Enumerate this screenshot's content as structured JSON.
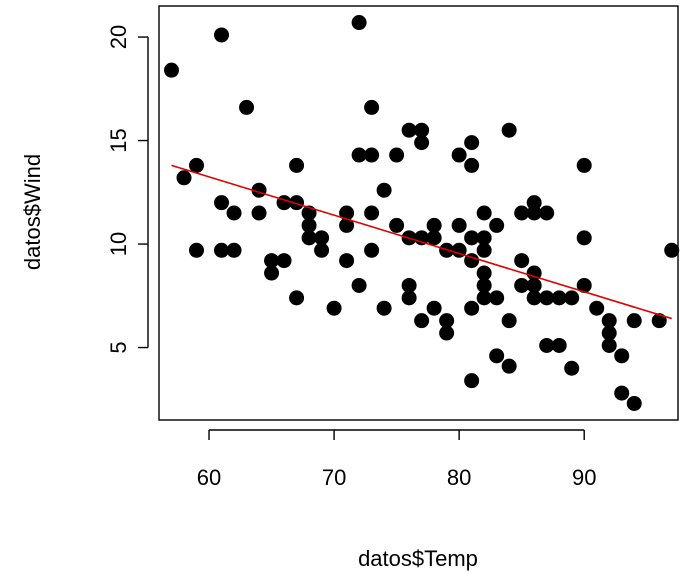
{
  "chart_data": {
    "type": "scatter",
    "title": "",
    "xlabel": "datos$Temp",
    "ylabel": "datos$Wind",
    "xlim": [
      56,
      97.5
    ],
    "ylim": [
      1.5,
      21.5
    ],
    "xticks": [
      60,
      70,
      80,
      90
    ],
    "yticks": [
      5,
      10,
      15,
      20
    ],
    "grid": false,
    "point_color": "#000000",
    "fit_line_color": "#e00000",
    "fit_line": {
      "x": [
        57,
        97
      ],
      "y": [
        13.8,
        6.4
      ]
    },
    "points": [
      [
        57,
        18.4
      ],
      [
        58,
        13.2
      ],
      [
        59,
        13.8
      ],
      [
        59,
        9.7
      ],
      [
        61,
        20.1
      ],
      [
        61,
        12.0
      ],
      [
        61,
        9.7
      ],
      [
        62,
        11.5
      ],
      [
        62,
        9.7
      ],
      [
        63,
        16.6
      ],
      [
        64,
        12.6
      ],
      [
        64,
        11.5
      ],
      [
        65,
        9.2
      ],
      [
        65,
        8.6
      ],
      [
        66,
        12.0
      ],
      [
        66,
        9.2
      ],
      [
        67,
        13.8
      ],
      [
        67,
        12.0
      ],
      [
        67,
        7.4
      ],
      [
        68,
        11.5
      ],
      [
        68,
        10.9
      ],
      [
        68,
        10.3
      ],
      [
        69,
        10.3
      ],
      [
        69,
        9.7
      ],
      [
        70,
        6.9
      ],
      [
        71,
        11.5
      ],
      [
        71,
        10.9
      ],
      [
        71,
        9.2
      ],
      [
        72,
        20.7
      ],
      [
        72,
        14.3
      ],
      [
        72,
        8.0
      ],
      [
        73,
        16.6
      ],
      [
        73,
        14.3
      ],
      [
        73,
        11.5
      ],
      [
        73,
        9.7
      ],
      [
        74,
        12.6
      ],
      [
        74,
        6.9
      ],
      [
        75,
        14.3
      ],
      [
        75,
        10.9
      ],
      [
        76,
        15.5
      ],
      [
        76,
        10.3
      ],
      [
        76,
        8.0
      ],
      [
        76,
        7.4
      ],
      [
        77,
        15.5
      ],
      [
        77,
        14.9
      ],
      [
        77,
        10.3
      ],
      [
        77,
        6.3
      ],
      [
        78,
        10.9
      ],
      [
        78,
        10.3
      ],
      [
        78,
        6.9
      ],
      [
        79,
        9.7
      ],
      [
        79,
        6.3
      ],
      [
        79,
        5.7
      ],
      [
        80,
        14.3
      ],
      [
        80,
        10.9
      ],
      [
        80,
        9.7
      ],
      [
        81,
        14.9
      ],
      [
        81,
        13.8
      ],
      [
        81,
        10.3
      ],
      [
        81,
        9.2
      ],
      [
        81,
        6.9
      ],
      [
        81,
        3.4
      ],
      [
        82,
        11.5
      ],
      [
        82,
        10.3
      ],
      [
        82,
        9.7
      ],
      [
        82,
        8.6
      ],
      [
        82,
        8.0
      ],
      [
        82,
        7.4
      ],
      [
        83,
        10.9
      ],
      [
        83,
        7.4
      ],
      [
        83,
        4.6
      ],
      [
        84,
        15.5
      ],
      [
        84,
        6.3
      ],
      [
        84,
        4.1
      ],
      [
        85,
        11.5
      ],
      [
        85,
        9.2
      ],
      [
        85,
        8.0
      ],
      [
        86,
        12.0
      ],
      [
        86,
        11.5
      ],
      [
        86,
        8.6
      ],
      [
        86,
        8.0
      ],
      [
        86,
        7.4
      ],
      [
        87,
        11.5
      ],
      [
        87,
        7.4
      ],
      [
        87,
        5.1
      ],
      [
        88,
        7.4
      ],
      [
        88,
        5.1
      ],
      [
        89,
        7.4
      ],
      [
        89,
        4.0
      ],
      [
        90,
        13.8
      ],
      [
        90,
        10.3
      ],
      [
        90,
        8.0
      ],
      [
        91,
        6.9
      ],
      [
        92,
        6.3
      ],
      [
        92,
        5.7
      ],
      [
        92,
        5.1
      ],
      [
        93,
        4.6
      ],
      [
        93,
        2.8
      ],
      [
        94,
        6.3
      ],
      [
        94,
        2.3
      ],
      [
        96,
        6.3
      ],
      [
        97,
        9.7
      ]
    ]
  }
}
